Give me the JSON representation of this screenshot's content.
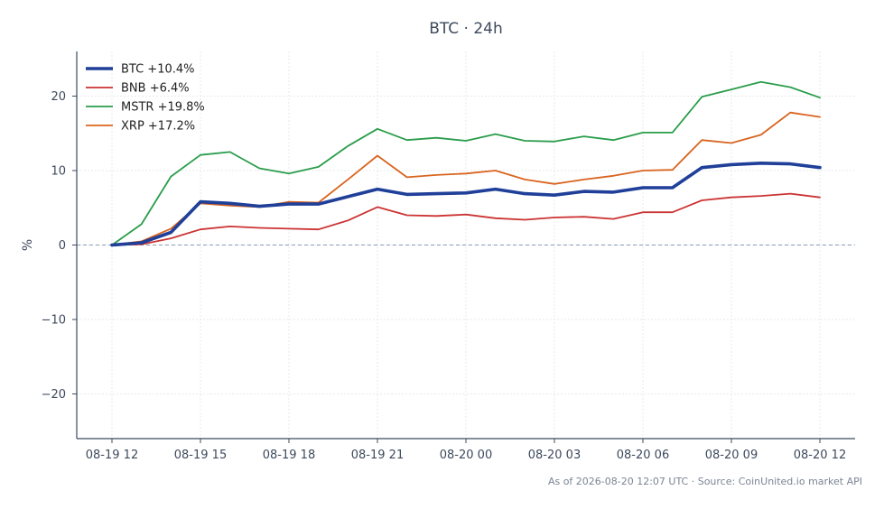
{
  "chart_data": {
    "type": "line",
    "title": "BTC · 24h",
    "ylabel": "%",
    "xlabel": "",
    "ylim": [
      -26,
      26
    ],
    "yticks": [
      -20,
      -10,
      0,
      10,
      20
    ],
    "ytick_labels": [
      "−20",
      "−10",
      "0",
      "10",
      "20"
    ],
    "x": [
      "08-19 12",
      "08-19 13",
      "08-19 14",
      "08-19 15",
      "08-19 16",
      "08-19 17",
      "08-19 18",
      "08-19 19",
      "08-19 20",
      "08-19 21",
      "08-19 22",
      "08-19 23",
      "08-20 00",
      "08-20 01",
      "08-20 02",
      "08-20 03",
      "08-20 04",
      "08-20 05",
      "08-20 06",
      "08-20 07",
      "08-20 08",
      "08-20 09",
      "08-20 10",
      "08-20 11",
      "08-20 12"
    ],
    "xtick_labels": [
      "08-19 12",
      "08-19 15",
      "08-19 18",
      "08-19 21",
      "08-20 00",
      "08-20 03",
      "08-20 06",
      "08-20 09",
      "08-20 12"
    ],
    "grid": true,
    "zero_line": true,
    "legend_position": "top-left",
    "series": [
      {
        "name": "BTC +10.4%",
        "color": "#1f3f99",
        "bold": true,
        "values": [
          0.0,
          0.3,
          1.7,
          5.8,
          5.6,
          5.2,
          5.5,
          5.5,
          6.5,
          7.5,
          6.8,
          6.9,
          7.0,
          7.5,
          6.9,
          6.7,
          7.2,
          7.1,
          7.7,
          7.7,
          10.4,
          10.8,
          11.0,
          10.9,
          10.4
        ]
      },
      {
        "name": "BNB +6.4%",
        "color": "#cc3333",
        "bold": false,
        "values": [
          0.0,
          0.1,
          0.9,
          2.1,
          2.5,
          2.3,
          2.2,
          2.1,
          3.3,
          5.1,
          4.0,
          3.9,
          4.1,
          3.6,
          3.4,
          3.7,
          3.8,
          3.5,
          4.4,
          4.4,
          6.0,
          6.4,
          6.6,
          6.9,
          6.4
        ]
      },
      {
        "name": "MSTR +19.8%",
        "color": "#2a9d4b",
        "bold": false,
        "values": [
          0.0,
          2.8,
          9.2,
          12.1,
          12.5,
          10.3,
          9.6,
          10.5,
          13.3,
          15.6,
          14.1,
          14.4,
          14.0,
          14.9,
          14.0,
          13.9,
          14.6,
          14.1,
          15.1,
          15.1,
          19.9,
          20.9,
          21.9,
          21.2,
          19.8
        ]
      },
      {
        "name": "XRP +17.2%",
        "color": "#d9641f",
        "bold": false,
        "values": [
          0.0,
          0.5,
          2.2,
          5.6,
          5.3,
          5.1,
          5.8,
          5.7,
          8.8,
          12.0,
          9.1,
          9.4,
          9.6,
          10.0,
          8.8,
          8.2,
          8.8,
          9.3,
          10.0,
          10.1,
          14.1,
          13.7,
          14.8,
          17.8,
          17.2
        ]
      }
    ]
  },
  "footer": "As of 2026-08-20 12:07 UTC · Source: CoinUnited.io market API"
}
